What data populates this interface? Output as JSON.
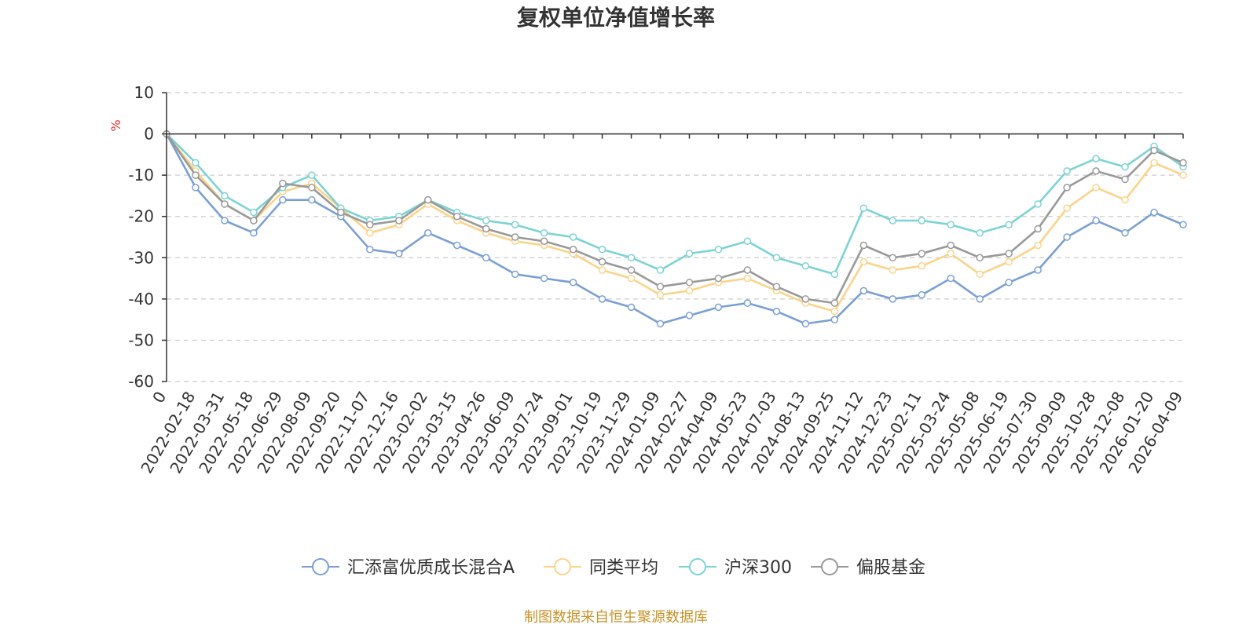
{
  "chart_data": {
    "type": "line",
    "title": "复权单位净值增长率",
    "ylabel": "%",
    "ylim": [
      -60,
      10
    ],
    "yticks": [
      10,
      0,
      -10,
      -20,
      -30,
      -40,
      -50,
      -60
    ],
    "grid": true,
    "legend_position": "bottom",
    "source": "制图数据来自恒生聚源数据库",
    "colors": {
      "unit": "#e03030",
      "source": "#c8922a",
      "grid": "#cccccc",
      "axis": "#333333"
    },
    "x": [
      "0",
      "2022-02-18",
      "2022-03-31",
      "2022-05-18",
      "2022-06-29",
      "2022-08-09",
      "2022-09-20",
      "2022-11-07",
      "2022-12-16",
      "2023-02-02",
      "2023-03-15",
      "2023-04-26",
      "2023-06-09",
      "2023-07-24",
      "2023-09-01",
      "2023-10-19",
      "2023-11-29",
      "2024-01-09",
      "2024-02-27",
      "2024-04-09",
      "2024-05-23",
      "2024-07-03",
      "2024-08-13",
      "2024-09-25",
      "2024-11-12",
      "2024-12-23",
      "2025-02-11",
      "2025-03-24",
      "2025-05-08",
      "2025-06-19",
      "2025-07-30",
      "2025-09-09",
      "2025-10-28",
      "2025-12-08",
      "2026-01-20",
      "2026-04-09"
    ],
    "series": [
      {
        "name": "汇添富优质成长混合A",
        "color": "#7b9fd4",
        "values": [
          0,
          -13,
          -21,
          -24,
          -16,
          -16,
          -20,
          -28,
          -29,
          -24,
          -27,
          -30,
          -34,
          -35,
          -36,
          -40,
          -42,
          -46,
          -44,
          -42,
          -41,
          -43,
          -46,
          -45,
          -38,
          -40,
          -39,
          -35,
          -40,
          -36,
          -33,
          -25,
          -21,
          -24,
          -19,
          -22
        ]
      },
      {
        "name": "同类平均",
        "color": "#fbd38a",
        "values": [
          0,
          -9,
          -17,
          -21,
          -14,
          -12,
          -18,
          -24,
          -22,
          -17,
          -21,
          -24,
          -26,
          -27,
          -29,
          -33,
          -35,
          -39,
          -38,
          -36,
          -35,
          -38,
          -41,
          -43,
          -31,
          -33,
          -32,
          -29,
          -34,
          -31,
          -27,
          -18,
          -13,
          -16,
          -7,
          -10
        ]
      },
      {
        "name": "沪深300",
        "color": "#7dd3d3",
        "values": [
          0,
          -7,
          -15,
          -19,
          -13,
          -10,
          -18,
          -21,
          -20,
          -16,
          -19,
          -21,
          -22,
          -24,
          -25,
          -28,
          -30,
          -33,
          -29,
          -28,
          -26,
          -30,
          -32,
          -34,
          -18,
          -21,
          -21,
          -22,
          -24,
          -22,
          -17,
          -9,
          -6,
          -8,
          -3,
          -8
        ]
      },
      {
        "name": "偏股基金",
        "color": "#999999",
        "values": [
          0,
          -10,
          -17,
          -21,
          -12,
          -13,
          -19,
          -22,
          -21,
          -16,
          -20,
          -23,
          -25,
          -26,
          -28,
          -31,
          -33,
          -37,
          -36,
          -35,
          -33,
          -37,
          -40,
          -41,
          -27,
          -30,
          -29,
          -27,
          -30,
          -29,
          -23,
          -13,
          -9,
          -11,
          -4,
          -7
        ]
      }
    ]
  }
}
